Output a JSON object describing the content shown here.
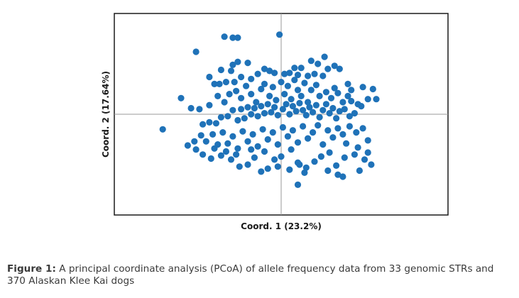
{
  "chart_data": {
    "type": "scatter",
    "xlabel": "Coord. 1 (23.2%)",
    "ylabel": "Coord. 2 (17.64%)",
    "xlim": [
      -1.0,
      1.0
    ],
    "ylim": [
      -1.0,
      1.0
    ],
    "reference_lines": {
      "x": 0,
      "y": 0
    },
    "grid": false,
    "legend": "none",
    "marker_color": "#1f72b8",
    "points": [
      [
        -0.51,
        0.62
      ],
      [
        -0.34,
        0.77
      ],
      [
        -0.29,
        0.76
      ],
      [
        -0.26,
        0.76
      ],
      [
        -0.01,
        0.79
      ],
      [
        -0.26,
        0.52
      ],
      [
        -0.29,
        0.49
      ],
      [
        -0.2,
        0.51
      ],
      [
        -0.43,
        0.37
      ],
      [
        -0.4,
        0.3
      ],
      [
        -0.37,
        0.3
      ],
      [
        -0.33,
        0.32
      ],
      [
        -0.28,
        0.32
      ],
      [
        -0.24,
        0.37
      ],
      [
        -0.18,
        0.35
      ],
      [
        -0.14,
        0.4
      ],
      [
        -0.1,
        0.45
      ],
      [
        -0.07,
        0.43
      ],
      [
        -0.04,
        0.41
      ],
      [
        0.02,
        0.4
      ],
      [
        0.05,
        0.41
      ],
      [
        0.08,
        0.46
      ],
      [
        0.12,
        0.46
      ],
      [
        0.18,
        0.53
      ],
      [
        0.22,
        0.5
      ],
      [
        0.28,
        0.45
      ],
      [
        0.32,
        0.48
      ],
      [
        0.35,
        0.45
      ],
      [
        0.4,
        0.3
      ],
      [
        0.49,
        0.27
      ],
      [
        0.55,
        0.25
      ],
      [
        0.57,
        0.15
      ],
      [
        0.52,
        0.15
      ],
      [
        0.48,
        0.08
      ],
      [
        0.46,
        0.1
      ],
      [
        -0.6,
        0.16
      ],
      [
        -0.54,
        0.06
      ],
      [
        -0.49,
        0.05
      ],
      [
        -0.43,
        0.09
      ],
      [
        -0.38,
        0.18
      ],
      [
        -0.34,
        0.12
      ],
      [
        -0.31,
        0.2
      ],
      [
        -0.27,
        0.23
      ],
      [
        -0.24,
        0.16
      ],
      [
        -0.21,
        0.28
      ],
      [
        -0.18,
        0.2
      ],
      [
        -0.15,
        0.12
      ],
      [
        -0.12,
        0.25
      ],
      [
        -0.1,
        0.3
      ],
      [
        -0.07,
        0.18
      ],
      [
        -0.05,
        0.27
      ],
      [
        -0.03,
        0.14
      ],
      [
        0.0,
        0.32
      ],
      [
        0.02,
        0.2
      ],
      [
        0.04,
        0.28
      ],
      [
        0.06,
        0.15
      ],
      [
        0.08,
        0.34
      ],
      [
        0.1,
        0.24
      ],
      [
        0.12,
        0.18
      ],
      [
        0.14,
        0.31
      ],
      [
        0.16,
        0.12
      ],
      [
        0.18,
        0.24
      ],
      [
        0.21,
        0.29
      ],
      [
        0.23,
        0.18
      ],
      [
        0.25,
        0.38
      ],
      [
        0.27,
        0.22
      ],
      [
        0.3,
        0.16
      ],
      [
        0.32,
        0.26
      ],
      [
        0.34,
        0.21
      ],
      [
        0.37,
        0.12
      ],
      [
        0.4,
        0.18
      ],
      [
        0.42,
        0.13
      ],
      [
        -0.47,
        -0.1
      ],
      [
        -0.43,
        -0.08
      ],
      [
        -0.39,
        -0.09
      ],
      [
        -0.36,
        -0.03
      ],
      [
        -0.32,
        -0.02
      ],
      [
        -0.29,
        0.04
      ],
      [
        -0.26,
        -0.06
      ],
      [
        -0.24,
        0.05
      ],
      [
        -0.22,
        -0.04
      ],
      [
        -0.2,
        0.07
      ],
      [
        -0.18,
        0.0
      ],
      [
        -0.16,
        0.06
      ],
      [
        -0.14,
        -0.02
      ],
      [
        -0.12,
        0.08
      ],
      [
        -0.1,
        0.01
      ],
      [
        -0.08,
        0.1
      ],
      [
        -0.06,
        0.02
      ],
      [
        -0.04,
        0.07
      ],
      [
        -0.02,
        -0.01
      ],
      [
        0.01,
        0.05
      ],
      [
        0.03,
        0.1
      ],
      [
        0.05,
        0.0
      ],
      [
        0.07,
        0.08
      ],
      [
        0.09,
        0.03
      ],
      [
        0.11,
        0.11
      ],
      [
        0.13,
        0.04
      ],
      [
        0.15,
        -0.01
      ],
      [
        0.17,
        0.07
      ],
      [
        0.19,
        0.02
      ],
      [
        0.21,
        0.09
      ],
      [
        0.23,
        -0.03
      ],
      [
        0.25,
        0.04
      ],
      [
        0.27,
        0.1
      ],
      [
        0.29,
        0.01
      ],
      [
        0.31,
        0.06
      ],
      [
        0.33,
        -0.04
      ],
      [
        0.35,
        0.03
      ],
      [
        0.38,
        0.05
      ],
      [
        0.41,
        -0.02
      ],
      [
        0.44,
        0.01
      ],
      [
        -0.71,
        -0.15
      ],
      [
        -0.52,
        -0.27
      ],
      [
        -0.48,
        -0.21
      ],
      [
        -0.45,
        -0.27
      ],
      [
        -0.41,
        -0.2
      ],
      [
        -0.38,
        -0.3
      ],
      [
        -0.35,
        -0.18
      ],
      [
        -0.32,
        -0.29
      ],
      [
        -0.29,
        -0.22
      ],
      [
        -0.26,
        -0.34
      ],
      [
        -0.23,
        -0.17
      ],
      [
        -0.2,
        -0.27
      ],
      [
        -0.17,
        -0.2
      ],
      [
        -0.14,
        -0.32
      ],
      [
        -0.11,
        -0.15
      ],
      [
        -0.08,
        -0.25
      ],
      [
        -0.05,
        -0.18
      ],
      [
        -0.02,
        -0.3
      ],
      [
        0.01,
        -0.13
      ],
      [
        0.04,
        -0.22
      ],
      [
        0.07,
        -0.16
      ],
      [
        0.1,
        -0.28
      ],
      [
        0.13,
        -0.12
      ],
      [
        0.16,
        -0.24
      ],
      [
        0.19,
        -0.18
      ],
      [
        0.22,
        -0.11
      ],
      [
        0.25,
        -0.3
      ],
      [
        0.28,
        -0.16
      ],
      [
        0.31,
        -0.23
      ],
      [
        0.34,
        -0.14
      ],
      [
        0.37,
        -0.2
      ],
      [
        0.41,
        -0.12
      ],
      [
        0.45,
        -0.18
      ],
      [
        0.49,
        -0.14
      ],
      [
        0.52,
        -0.26
      ],
      [
        -0.56,
        -0.31
      ],
      [
        -0.51,
        -0.35
      ],
      [
        -0.47,
        -0.4
      ],
      [
        -0.42,
        -0.44
      ],
      [
        -0.36,
        -0.41
      ],
      [
        -0.3,
        -0.45
      ],
      [
        -0.25,
        -0.52
      ],
      [
        -0.2,
        -0.5
      ],
      [
        -0.16,
        -0.43
      ],
      [
        -0.12,
        -0.57
      ],
      [
        -0.08,
        -0.54
      ],
      [
        -0.04,
        -0.45
      ],
      [
        0.0,
        -0.42
      ],
      [
        0.05,
        -0.55
      ],
      [
        0.1,
        -0.48
      ],
      [
        0.15,
        -0.53
      ],
      [
        0.2,
        -0.47
      ],
      [
        0.24,
        -0.42
      ],
      [
        0.29,
        -0.38
      ],
      [
        0.33,
        -0.51
      ],
      [
        0.38,
        -0.43
      ],
      [
        0.44,
        -0.4
      ],
      [
        0.5,
        -0.45
      ],
      [
        0.54,
        -0.5
      ],
      [
        0.47,
        -0.56
      ],
      [
        0.34,
        -0.6
      ],
      [
        0.28,
        -0.56
      ],
      [
        0.14,
        -0.58
      ],
      [
        0.11,
        -0.5
      ],
      [
        -0.02,
        -0.52
      ],
      [
        -0.1,
        -0.37
      ],
      [
        -0.18,
        -0.35
      ],
      [
        -0.27,
        -0.4
      ],
      [
        -0.33,
        -0.37
      ],
      [
        -0.4,
        -0.34
      ],
      [
        0.1,
        -0.7
      ],
      [
        0.37,
        -0.62
      ],
      [
        0.52,
        -0.38
      ],
      [
        0.46,
        -0.33
      ],
      [
        0.39,
        -0.29
      ],
      [
        0.06,
        -0.35
      ],
      [
        0.42,
        0.24
      ],
      [
        -0.36,
        0.44
      ],
      [
        -0.3,
        0.43
      ],
      [
        0.2,
        0.4
      ],
      [
        0.26,
        0.57
      ],
      [
        0.16,
        0.38
      ],
      [
        0.1,
        0.39
      ]
    ]
  },
  "caption": {
    "prefix": "Figure 1:",
    "text": " A principal coordinate analysis (PCoA) of allele frequency data from 33 genomic STRs and 370 Alaskan Klee Kai dogs"
  }
}
